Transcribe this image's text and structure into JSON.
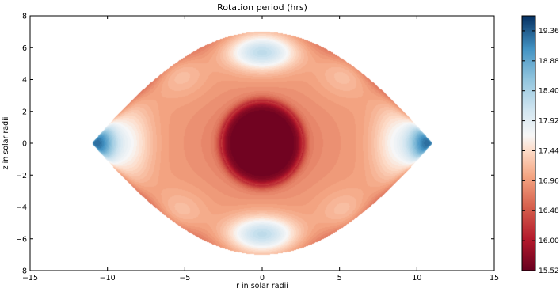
{
  "chart_data": {
    "type": "heatmap",
    "title": "Rotation period (hrs)",
    "xlabel": "r in solar radii",
    "ylabel": "z in solar radii",
    "xlim": [
      -15,
      15
    ],
    "ylim": [
      -8,
      8
    ],
    "x_ticks": [
      -15,
      -10,
      -5,
      0,
      5,
      10,
      15
    ],
    "y_ticks": [
      -8,
      -6,
      -4,
      -2,
      0,
      2,
      4,
      6,
      8
    ],
    "colorbar": {
      "colormap": "RdBu",
      "range": [
        15.52,
        19.6
      ],
      "ticks": [
        "15.52",
        "16.00",
        "16.48",
        "16.96",
        "17.44",
        "17.92",
        "18.40",
        "18.88",
        "19.36"
      ]
    },
    "shape": {
      "equatorial_extent": 11,
      "polar_extent": 7
    },
    "features": [
      {
        "region": "core",
        "center": [
          0,
          0
        ],
        "radius": 2.6,
        "value": 15.6
      },
      {
        "region": "polar",
        "center": [
          0,
          5.7
        ],
        "value": 18.4
      },
      {
        "region": "polar",
        "center": [
          0,
          -5.7
        ],
        "value": 18.4
      },
      {
        "region": "equatorial tip",
        "center": [
          -10.7,
          0
        ],
        "value": 19.4
      },
      {
        "region": "equatorial tip",
        "center": [
          10.7,
          0
        ],
        "value": 19.4
      }
    ]
  }
}
